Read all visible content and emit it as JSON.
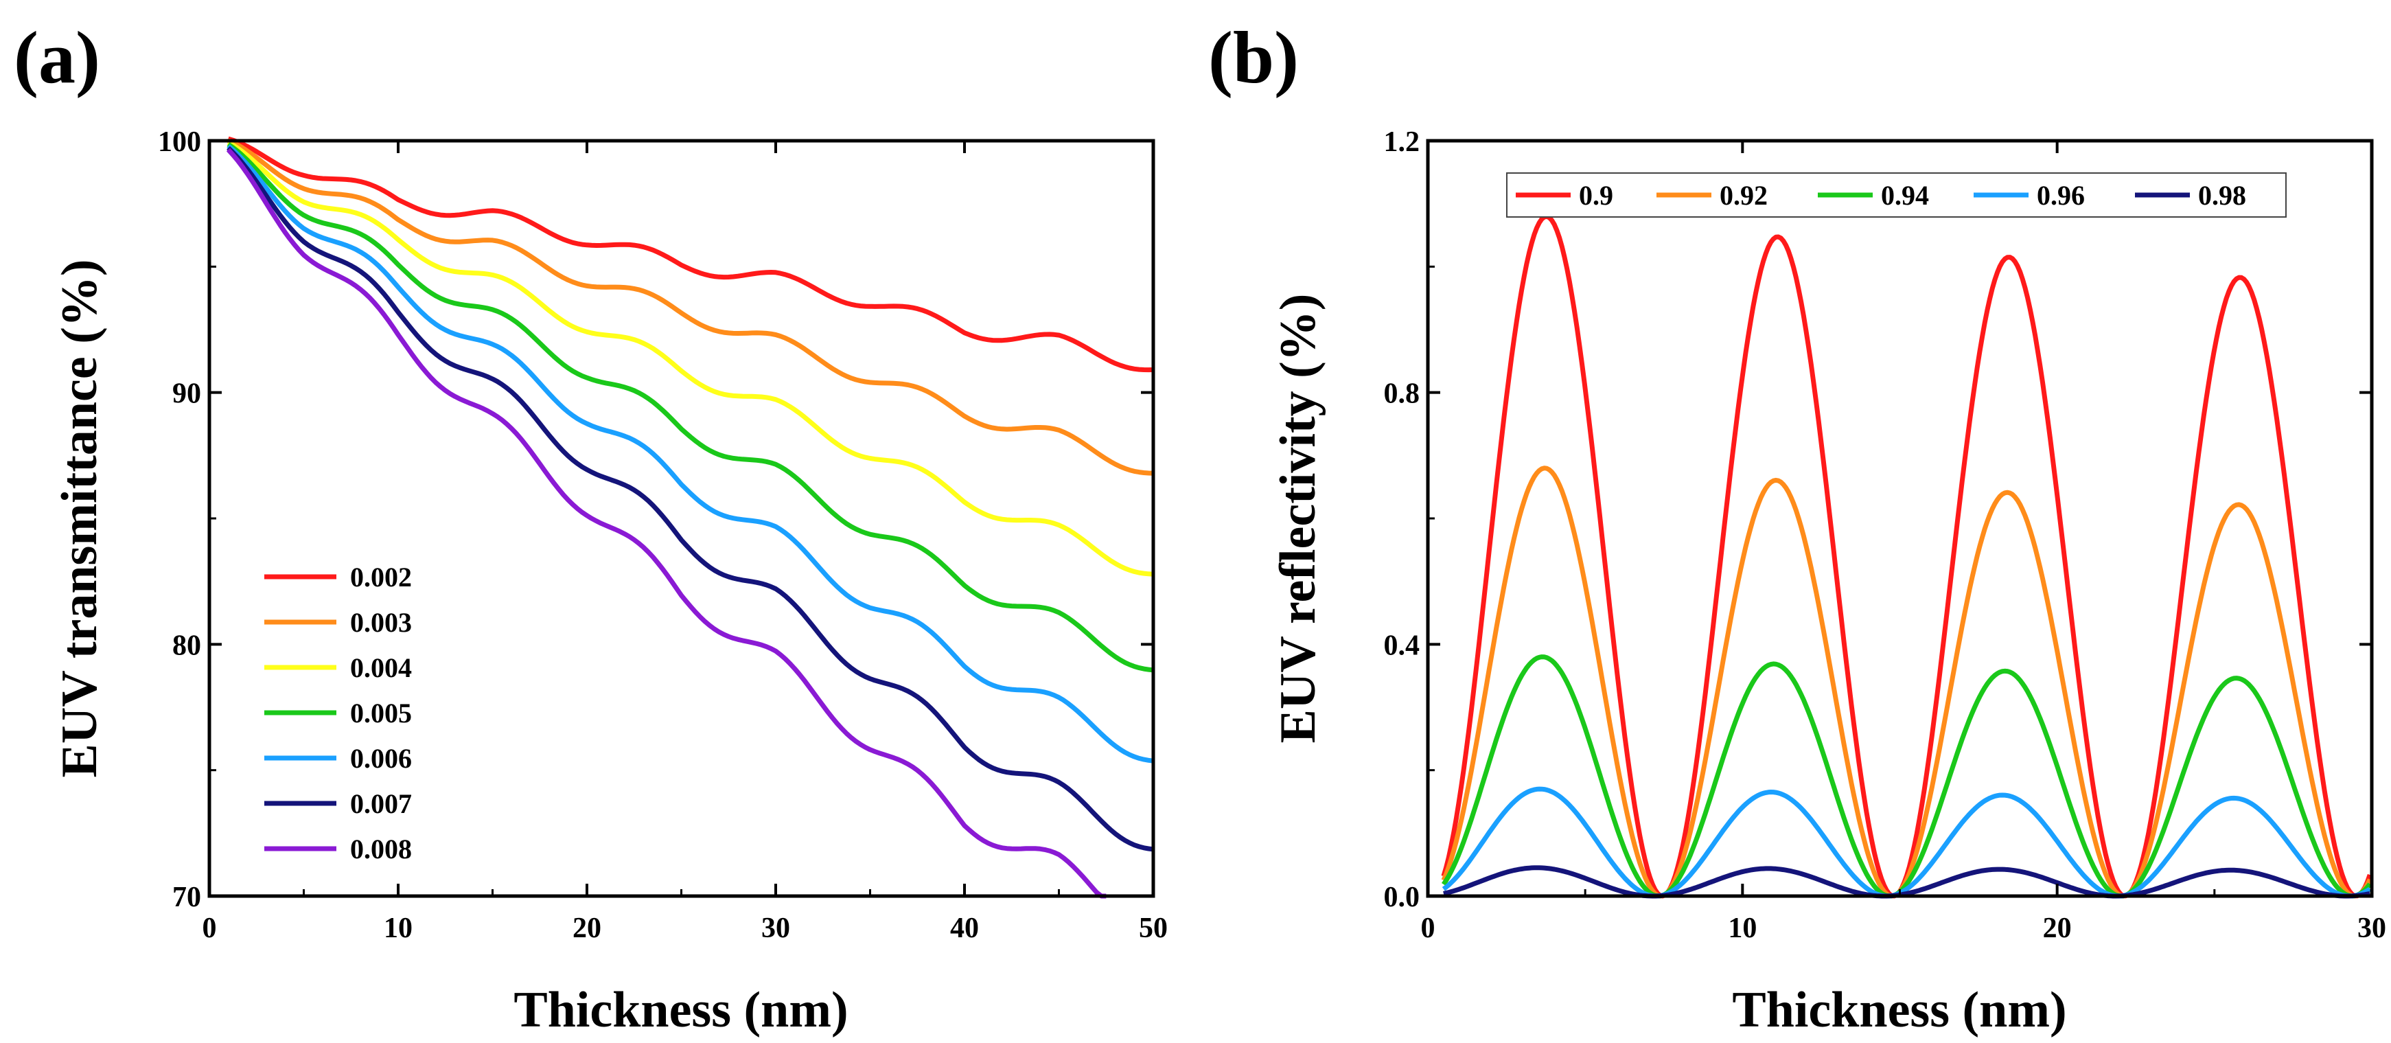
{
  "chart_data": [
    {
      "panel": "(a)",
      "type": "line",
      "xlabel": "Thickness (nm)",
      "ylabel": "EUV transmittance (%)",
      "xlim": [
        0,
        50
      ],
      "ylim": [
        70,
        100
      ],
      "xticks": [
        "0",
        "10",
        "20",
        "30",
        "40",
        "50"
      ],
      "yticks": [
        "70",
        "80",
        "90",
        "100"
      ],
      "legend_position": "bottom-left",
      "series": [
        {
          "name": "0.002",
          "color": "#ff1a1a",
          "x": [
            1,
            5,
            10,
            15,
            20,
            25,
            30,
            35,
            40,
            45,
            50
          ],
          "y": [
            99.8,
            98.9,
            97.6,
            97.0,
            96.1,
            95.1,
            94.5,
            93.6,
            92.5,
            92.0,
            91.0
          ]
        },
        {
          "name": "0.003",
          "color": "#ff8c1a",
          "x": [
            1,
            5,
            10,
            15,
            20,
            25,
            30,
            35,
            40,
            45,
            50
          ],
          "y": [
            99.7,
            98.4,
            96.8,
            95.8,
            94.5,
            93.2,
            92.0,
            90.6,
            89.2,
            88.2,
            86.9
          ]
        },
        {
          "name": "0.004",
          "color": "#ffff1a",
          "x": [
            1,
            5,
            10,
            15,
            20,
            25,
            30,
            35,
            40,
            45,
            50
          ],
          "y": [
            99.6,
            97.9,
            96.0,
            94.4,
            92.7,
            90.9,
            89.4,
            87.6,
            85.8,
            84.4,
            82.9
          ]
        },
        {
          "name": "0.005",
          "color": "#1ac81a",
          "x": [
            1,
            5,
            10,
            15,
            20,
            25,
            30,
            35,
            40,
            45,
            50
          ],
          "y": [
            99.5,
            97.4,
            95.0,
            93.0,
            90.9,
            88.6,
            86.8,
            84.6,
            82.5,
            80.9,
            79.1
          ]
        },
        {
          "name": "0.006",
          "color": "#1aa0ff",
          "x": [
            1,
            5,
            10,
            15,
            20,
            25,
            30,
            35,
            40,
            45,
            50
          ],
          "y": [
            99.4,
            96.9,
            94.1,
            91.6,
            89.1,
            86.4,
            84.3,
            81.7,
            79.3,
            77.5,
            75.5
          ]
        },
        {
          "name": "0.007",
          "color": "#14147a",
          "x": [
            1,
            5,
            10,
            15,
            20,
            25,
            30,
            35,
            40,
            45,
            50
          ],
          "y": [
            99.3,
            96.4,
            93.1,
            90.2,
            87.3,
            84.2,
            81.8,
            78.9,
            76.1,
            74.1,
            72.0
          ]
        },
        {
          "name": "0.008",
          "color": "#8a1ad4",
          "x": [
            1,
            5,
            10,
            15,
            20,
            25,
            30,
            35,
            40,
            45,
            47.5
          ],
          "y": [
            99.2,
            95.9,
            92.2,
            88.8,
            85.5,
            82.0,
            79.3,
            76.1,
            73.0,
            71.2,
            70.0
          ]
        }
      ]
    },
    {
      "panel": "(b)",
      "type": "line",
      "xlabel": "Thickness (nm)",
      "ylabel": "EUV reflectivity (%)",
      "xlim": [
        0,
        30
      ],
      "ylim": [
        0,
        1.2
      ],
      "xticks": [
        "0",
        "10",
        "20",
        "30"
      ],
      "yticks": [
        "0.0",
        "0.4",
        "0.8",
        "1.2"
      ],
      "legend_position": "top",
      "curve_shape": "periodic sin^2 with period ~7.3 nm, minima at 0, 7.3, 14.6, 21.9, 29.2 nm; amplitude decreases slowly with thickness",
      "series": [
        {
          "name": "0.9",
          "color": "#ff1a1a",
          "peaks_x": [
            3.7,
            11.2,
            18.8,
            26.5
          ],
          "peaks_y": [
            1.08,
            1.04,
            1.01,
            0.98
          ]
        },
        {
          "name": "0.92",
          "color": "#ff8c1a",
          "peaks_x": [
            3.6,
            11.0,
            18.5,
            26.0
          ],
          "peaks_y": [
            0.68,
            0.66,
            0.64,
            0.62
          ]
        },
        {
          "name": "0.94",
          "color": "#1ac81a",
          "peaks_x": [
            3.5,
            10.8,
            18.2,
            25.5
          ],
          "peaks_y": [
            0.38,
            0.37,
            0.355,
            0.345
          ]
        },
        {
          "name": "0.96",
          "color": "#1aa0ff",
          "peaks_x": [
            3.4,
            10.7,
            17.9,
            25.1
          ],
          "peaks_y": [
            0.17,
            0.165,
            0.16,
            0.155
          ]
        },
        {
          "name": "0.98",
          "color": "#14147a",
          "peaks_x": [
            3.3,
            10.5,
            17.6,
            24.6
          ],
          "peaks_y": [
            0.045,
            0.043,
            0.042,
            0.041
          ]
        }
      ]
    }
  ]
}
